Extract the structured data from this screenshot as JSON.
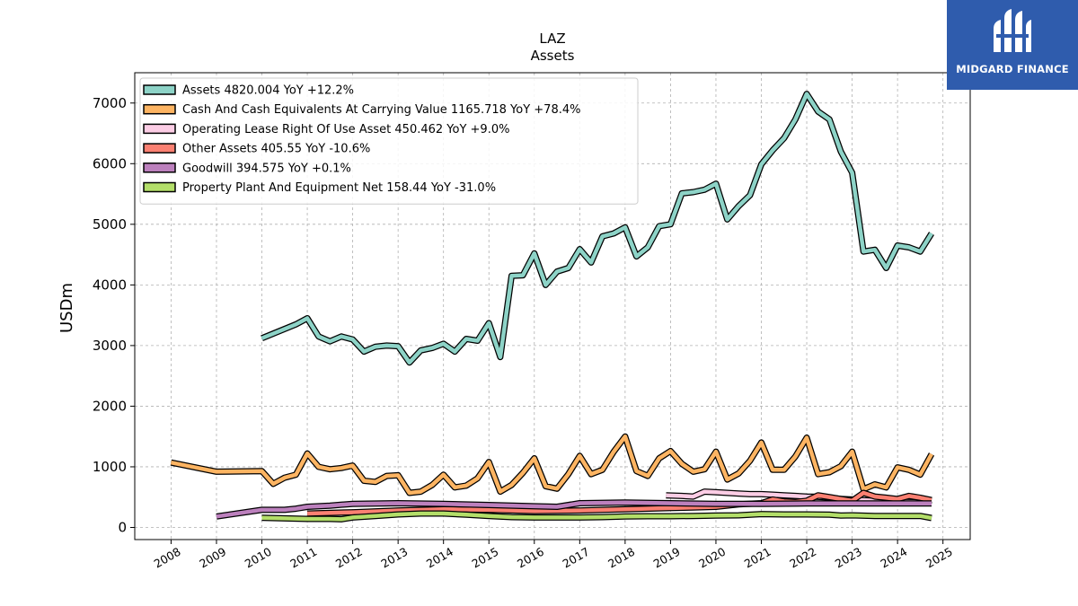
{
  "brand": {
    "name": "MIDGARD FINANCE",
    "logo_icon": "midgard-mark-icon",
    "color": "#2f5cad"
  },
  "chart_data": {
    "type": "line",
    "title": "LAZ",
    "subtitle": "Assets",
    "ylabel": "USDm",
    "xlabel": "",
    "ylim": [
      -200,
      7500
    ],
    "xlim": [
      2007.2,
      2025.6
    ],
    "yticks": [
      0,
      1000,
      2000,
      3000,
      4000,
      5000,
      6000,
      7000
    ],
    "xticks": [
      "2008",
      "2009",
      "2010",
      "2011",
      "2012",
      "2013",
      "2014",
      "2015",
      "2016",
      "2017",
      "2018",
      "2019",
      "2020",
      "2021",
      "2022",
      "2023",
      "2024",
      "2025"
    ],
    "grid": true,
    "legend_position": "top-left",
    "series": [
      {
        "name": "Assets  4820.004 YoY +12.2%",
        "color": "#8dd3c7",
        "x": [
          2010.0,
          2010.75,
          2011.0,
          2011.25,
          2011.5,
          2011.75,
          2012.0,
          2012.25,
          2012.5,
          2012.75,
          2013.0,
          2013.25,
          2013.5,
          2013.75,
          2014.0,
          2014.25,
          2014.5,
          2014.75,
          2015.0,
          2015.25,
          2015.5,
          2015.75,
          2016.0,
          2016.25,
          2016.5,
          2016.75,
          2017.0,
          2017.25,
          2017.5,
          2017.75,
          2018.0,
          2018.25,
          2018.5,
          2018.75,
          2019.0,
          2019.25,
          2019.5,
          2019.75,
          2020.0,
          2020.25,
          2020.5,
          2020.75,
          2021.0,
          2021.25,
          2021.5,
          2021.75,
          2022.0,
          2022.25,
          2022.5,
          2022.75,
          2023.0,
          2023.25,
          2023.5,
          2023.75,
          2024.0,
          2024.25,
          2024.5,
          2024.75
        ],
        "y": [
          3120,
          3350,
          3450,
          3150,
          3070,
          3150,
          3100,
          2900,
          2980,
          3000,
          2990,
          2720,
          2920,
          2960,
          3030,
          2900,
          3110,
          3080,
          3370,
          2810,
          4150,
          4160,
          4520,
          4000,
          4220,
          4280,
          4590,
          4370,
          4800,
          4850,
          4950,
          4470,
          4620,
          4970,
          5000,
          5510,
          5530,
          5570,
          5670,
          5080,
          5300,
          5480,
          5990,
          6220,
          6420,
          6730,
          7150,
          6860,
          6730,
          6200,
          5850,
          4550,
          4580,
          4280,
          4650,
          4620,
          4550,
          4850
        ]
      },
      {
        "name": "Cash And Cash Equivalents At Carrying Value  1165.718 YoY +78.4%",
        "color": "#fdb462",
        "x": [
          2008.0,
          2009.0,
          2010.0,
          2010.25,
          2010.5,
          2010.75,
          2011.0,
          2011.25,
          2011.5,
          2011.75,
          2012.0,
          2012.25,
          2012.5,
          2012.75,
          2013.0,
          2013.25,
          2013.5,
          2013.75,
          2014.0,
          2014.25,
          2014.5,
          2014.75,
          2015.0,
          2015.25,
          2015.5,
          2015.75,
          2016.0,
          2016.25,
          2016.5,
          2016.75,
          2017.0,
          2017.25,
          2017.5,
          2017.75,
          2018.0,
          2018.25,
          2018.5,
          2018.75,
          2019.0,
          2019.25,
          2019.5,
          2019.75,
          2020.0,
          2020.25,
          2020.5,
          2020.75,
          2021.0,
          2021.25,
          2021.5,
          2021.75,
          2022.0,
          2022.25,
          2022.5,
          2022.75,
          2023.0,
          2023.25,
          2023.5,
          2023.75,
          2024.0,
          2024.25,
          2024.5,
          2024.75
        ],
        "y": [
          1070,
          920,
          930,
          720,
          820,
          870,
          1220,
          1000,
          960,
          980,
          1020,
          770,
          750,
          850,
          860,
          570,
          590,
          700,
          870,
          660,
          690,
          810,
          1080,
          590,
          700,
          900,
          1140,
          680,
          640,
          880,
          1180,
          880,
          950,
          1250,
          1500,
          930,
          850,
          1140,
          1260,
          1050,
          920,
          960,
          1250,
          790,
          890,
          1100,
          1400,
          950,
          950,
          1170,
          1480,
          880,
          910,
          1010,
          1250,
          630,
          710,
          660,
          990,
          950,
          870,
          1210
        ]
      },
      {
        "name": "Operating Lease Right Of Use Asset  450.462 YoY +9.0%",
        "color": "#fccde5",
        "x": [
          2018.9,
          2019.25,
          2019.5,
          2019.75,
          2020.0,
          2020.25,
          2020.5,
          2020.75,
          2021.0,
          2021.25,
          2021.5,
          2021.75,
          2022.0,
          2022.25,
          2022.5,
          2022.75,
          2023.0,
          2023.25,
          2023.5,
          2023.75,
          2024.0,
          2024.25,
          2024.5,
          2024.75
        ],
        "y": [
          530,
          520,
          510,
          590,
          580,
          570,
          560,
          550,
          550,
          540,
          530,
          520,
          510,
          505,
          490,
          470,
          460,
          450,
          440,
          430,
          420,
          420,
          415,
          450
        ]
      },
      {
        "name": "Other Assets  405.55 YoY -10.6%",
        "color": "#fb8072",
        "x": [
          2011.0,
          2012.0,
          2013.0,
          2014.0,
          2015.0,
          2016.0,
          2017.0,
          2018.0,
          2019.0,
          2019.5,
          2020.0,
          2020.5,
          2021.0,
          2021.25,
          2021.5,
          2021.75,
          2022.0,
          2022.25,
          2022.5,
          2022.75,
          2023.0,
          2023.25,
          2023.5,
          2023.75,
          2024.0,
          2024.25,
          2024.5,
          2024.75
        ],
        "y": [
          230,
          250,
          280,
          300,
          290,
          270,
          280,
          300,
          320,
          330,
          340,
          380,
          400,
          460,
          430,
          420,
          440,
          530,
          500,
          470,
          440,
          570,
          510,
          490,
          470,
          520,
          490,
          450
        ]
      },
      {
        "name": "Goodwill  394.575 YoY +0.1%",
        "color": "#bc80bd",
        "x": [
          2009.0,
          2010.0,
          2010.5,
          2010.75,
          2011.0,
          2011.5,
          2012.0,
          2013.0,
          2014.0,
          2015.0,
          2016.0,
          2016.5,
          2017.0,
          2018.0,
          2019.0,
          2020.0,
          2021.0,
          2022.0,
          2023.0,
          2024.0,
          2024.75
        ],
        "y": [
          180,
          290,
          290,
          310,
          340,
          360,
          390,
          400,
          390,
          370,
          350,
          340,
          400,
          410,
          400,
          390,
          390,
          395,
          395,
          395,
          395
        ]
      },
      {
        "name": "Property Plant And Equipment Net  158.44 YoY -31.0%",
        "color": "#b3de69",
        "x": [
          2010.0,
          2010.5,
          2011.0,
          2011.5,
          2011.75,
          2012.0,
          2012.5,
          2013.0,
          2013.5,
          2014.0,
          2014.5,
          2015.0,
          2015.5,
          2016.0,
          2016.5,
          2017.0,
          2017.5,
          2018.0,
          2018.5,
          2019.0,
          2019.5,
          2020.0,
          2020.5,
          2021.0,
          2021.5,
          2022.0,
          2022.5,
          2022.75,
          2023.0,
          2023.5,
          2024.0,
          2024.5,
          2024.75
        ],
        "y": [
          160,
          150,
          140,
          140,
          135,
          165,
          190,
          215,
          230,
          230,
          210,
          190,
          170,
          165,
          165,
          165,
          170,
          180,
          185,
          185,
          190,
          195,
          200,
          220,
          215,
          215,
          210,
          195,
          200,
          190,
          190,
          190,
          155
        ]
      }
    ]
  }
}
